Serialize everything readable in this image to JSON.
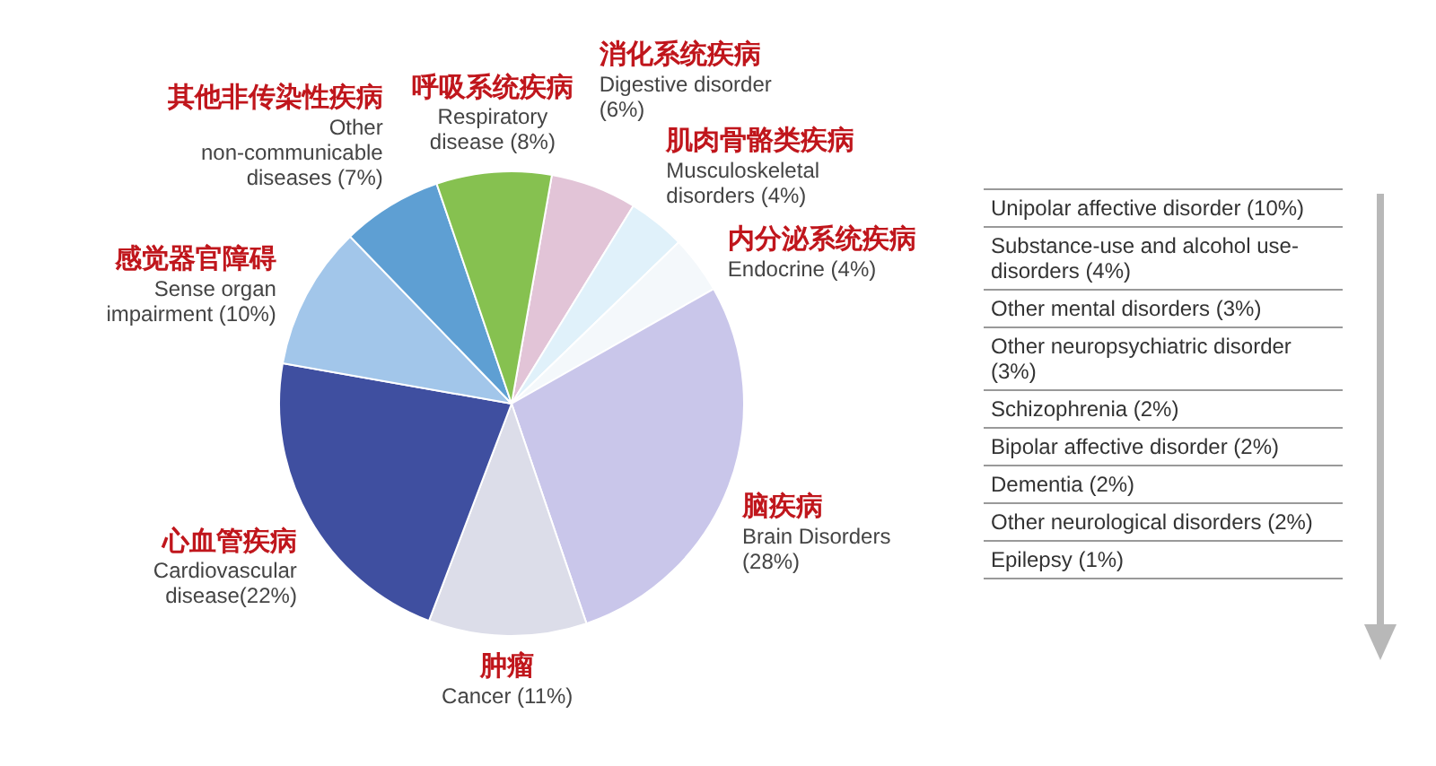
{
  "chart_data": {
    "type": "pie",
    "categories": [
      "Digestive disorder (6%)",
      "Musculoskeletal disorders (4%)",
      "Endocrine (4%)",
      "Brain Disorders (28%)",
      "Cancer (11%)",
      "Cardiovascular disease(22%)",
      "Sense organ impairment (10%)",
      "Other non-communicable diseases (7%)",
      "Respiratory disease (8%)"
    ],
    "values": [
      6,
      4,
      4,
      28,
      11,
      22,
      10,
      7,
      8
    ],
    "colors": [
      "#e2c4d7",
      "#e0f1fa",
      "#f4f8fb",
      "#c9c6ea",
      "#dcdde9",
      "#3f4fa0",
      "#a2c6ea",
      "#5e9fd3",
      "#86c150"
    ],
    "annotations": [
      "消化系统疾病",
      "肌肉骨骼类疾病",
      "内分泌系统疾病",
      "脑疾病",
      "肿瘤",
      "心血管疾病",
      "感觉器官障碍",
      "其他非传染性疾病",
      "呼吸系统疾病",
      "Unipolar affective disorder (10%)",
      "Substance-use and alcohol use-disorders (4%)",
      "Other mental disorders (3%)",
      "Other neuropsychiatric disorder (3%)",
      "Schizophrenia (2%)",
      "Bipolar affective disorder (2%)",
      "Dementia (2%)",
      "Other neurological disorders (2%)",
      "Epilepsy (1%)"
    ]
  }
}
